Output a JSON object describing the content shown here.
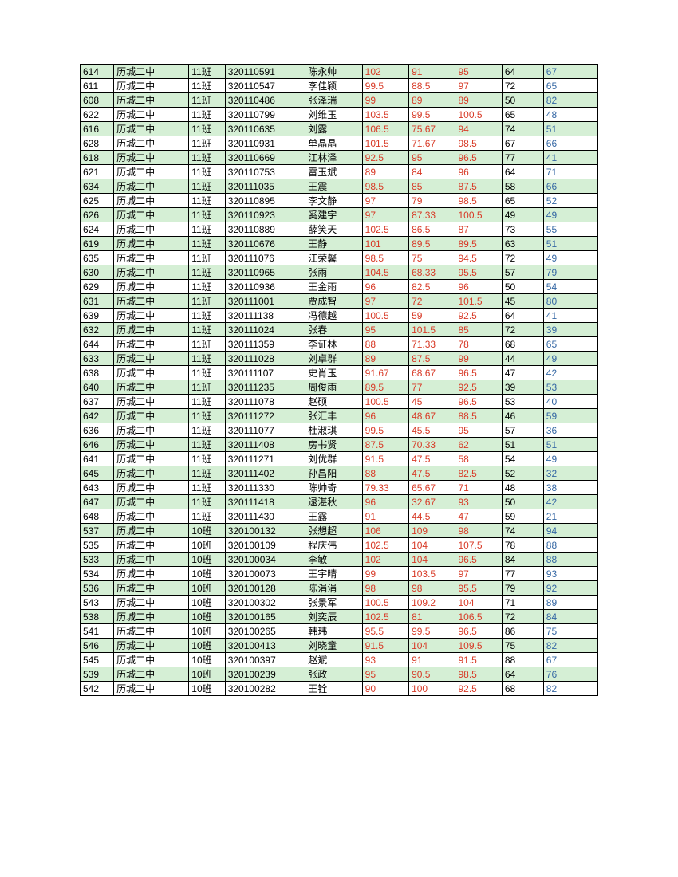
{
  "table": {
    "columns": [
      "id",
      "school",
      "class",
      "student_id",
      "name",
      "score1",
      "score2",
      "score3",
      "score4",
      "score5"
    ],
    "column_classes": [
      "col-id",
      "col-school",
      "col-class",
      "col-studentid",
      "col-name",
      "col-s1",
      "col-s2",
      "col-s3",
      "col-s4",
      "col-s5"
    ],
    "column_colors": [
      "black",
      "black",
      "black",
      "black",
      "black",
      "red",
      "red",
      "red",
      "black",
      "blue"
    ],
    "row_alt_colors": [
      "#d5efd5",
      "#ffffff"
    ],
    "border_color": "#000000",
    "font_size": 12,
    "data_colors": {
      "col0_4": "#000000",
      "col5_7": "#d83a27",
      "col8": "#000000",
      "col9": "#3668a4"
    },
    "rows": [
      [
        "614",
        "历城二中",
        "11班",
        "320110591",
        "陈永帅",
        "102",
        "91",
        "95",
        "64",
        "67"
      ],
      [
        "611",
        "历城二中",
        "11班",
        "320110547",
        "李佳颖",
        "99.5",
        "88.5",
        "97",
        "72",
        "65"
      ],
      [
        "608",
        "历城二中",
        "11班",
        "320110486",
        "张泽瑞",
        "99",
        "89",
        "89",
        "50",
        "82"
      ],
      [
        "622",
        "历城二中",
        "11班",
        "320110799",
        "刘维玉",
        "103.5",
        "99.5",
        "100.5",
        "65",
        "48"
      ],
      [
        "616",
        "历城二中",
        "11班",
        "320110635",
        "刘露",
        "106.5",
        "75.67",
        "94",
        "74",
        "51"
      ],
      [
        "628",
        "历城二中",
        "11班",
        "320110931",
        "单晶晶",
        "101.5",
        "71.67",
        "98.5",
        "67",
        "66"
      ],
      [
        "618",
        "历城二中",
        "11班",
        "320110669",
        "江林泽",
        "92.5",
        "95",
        "96.5",
        "77",
        "41"
      ],
      [
        "621",
        "历城二中",
        "11班",
        "320110753",
        "雷玉斌",
        "89",
        "84",
        "96",
        "64",
        "71"
      ],
      [
        "634",
        "历城二中",
        "11班",
        "320111035",
        "王震",
        "98.5",
        "85",
        "87.5",
        "58",
        "66"
      ],
      [
        "625",
        "历城二中",
        "11班",
        "320110895",
        "李文静",
        "97",
        "79",
        "98.5",
        "65",
        "52"
      ],
      [
        "626",
        "历城二中",
        "11班",
        "320110923",
        "奚建宇",
        "97",
        "87.33",
        "100.5",
        "49",
        "49"
      ],
      [
        "624",
        "历城二中",
        "11班",
        "320110889",
        "薛笑天",
        "102.5",
        "86.5",
        "87",
        "73",
        "55"
      ],
      [
        "619",
        "历城二中",
        "11班",
        "320110676",
        "王静",
        "101",
        "89.5",
        "89.5",
        "63",
        "51"
      ],
      [
        "635",
        "历城二中",
        "11班",
        "320111076",
        "江荣馨",
        "98.5",
        "75",
        "94.5",
        "72",
        "49"
      ],
      [
        "630",
        "历城二中",
        "11班",
        "320110965",
        "张雨",
        "104.5",
        "68.33",
        "95.5",
        "57",
        "79"
      ],
      [
        "629",
        "历城二中",
        "11班",
        "320110936",
        "王金雨",
        "96",
        "82.5",
        "96",
        "50",
        "54"
      ],
      [
        "631",
        "历城二中",
        "11班",
        "320111001",
        "贾成智",
        "97",
        "72",
        "101.5",
        "45",
        "80"
      ],
      [
        "639",
        "历城二中",
        "11班",
        "320111138",
        "冯德越",
        "100.5",
        "59",
        "92.5",
        "64",
        "41"
      ],
      [
        "632",
        "历城二中",
        "11班",
        "320111024",
        "张春",
        "95",
        "101.5",
        "85",
        "72",
        "39"
      ],
      [
        "644",
        "历城二中",
        "11班",
        "320111359",
        "李证林",
        "88",
        "71.33",
        "78",
        "68",
        "65"
      ],
      [
        "633",
        "历城二中",
        "11班",
        "320111028",
        "刘卓群",
        "89",
        "87.5",
        "99",
        "44",
        "49"
      ],
      [
        "638",
        "历城二中",
        "11班",
        "320111107",
        "史肖玉",
        "91.67",
        "68.67",
        "96.5",
        "47",
        "42"
      ],
      [
        "640",
        "历城二中",
        "11班",
        "320111235",
        "周俊雨",
        "89.5",
        "77",
        "92.5",
        "39",
        "53"
      ],
      [
        "637",
        "历城二中",
        "11班",
        "320111078",
        "赵硕",
        "100.5",
        "45",
        "96.5",
        "53",
        "40"
      ],
      [
        "642",
        "历城二中",
        "11班",
        "320111272",
        "张汇丰",
        "96",
        "48.67",
        "88.5",
        "46",
        "59"
      ],
      [
        "636",
        "历城二中",
        "11班",
        "320111077",
        "杜淑琪",
        "99.5",
        "45.5",
        "95",
        "57",
        "36"
      ],
      [
        "646",
        "历城二中",
        "11班",
        "320111408",
        "房书贤",
        "87.5",
        "70.33",
        "62",
        "51",
        "51"
      ],
      [
        "641",
        "历城二中",
        "11班",
        "320111271",
        "刘优群",
        "91.5",
        "47.5",
        "58",
        "54",
        "49"
      ],
      [
        "645",
        "历城二中",
        "11班",
        "320111402",
        "孙昌阳",
        "88",
        "47.5",
        "82.5",
        "52",
        "32"
      ],
      [
        "643",
        "历城二中",
        "11班",
        "320111330",
        "陈帅奇",
        "79.33",
        "65.67",
        "71",
        "48",
        "38"
      ],
      [
        "647",
        "历城二中",
        "11班",
        "320111418",
        "逯湛秋",
        "96",
        "32.67",
        "93",
        "50",
        "42"
      ],
      [
        "648",
        "历城二中",
        "11班",
        "320111430",
        "王露",
        "91",
        "44.5",
        "47",
        "59",
        "21"
      ],
      [
        "537",
        "历城二中",
        "10班",
        "320100132",
        "张想超",
        "106",
        "109",
        "98",
        "74",
        "94"
      ],
      [
        "535",
        "历城二中",
        "10班",
        "320100109",
        "程庆伟",
        "102.5",
        "104",
        "107.5",
        "78",
        "88"
      ],
      [
        "533",
        "历城二中",
        "10班",
        "320100034",
        "李敏",
        "102",
        "104",
        "96.5",
        "84",
        "88"
      ],
      [
        "534",
        "历城二中",
        "10班",
        "320100073",
        "王宇晴",
        "99",
        "103.5",
        "97",
        "77",
        "93"
      ],
      [
        "536",
        "历城二中",
        "10班",
        "320100128",
        "陈涓涓",
        "98",
        "98",
        "95.5",
        "79",
        "92"
      ],
      [
        "543",
        "历城二中",
        "10班",
        "320100302",
        "张景军",
        "100.5",
        "109.2",
        "104",
        "71",
        "89"
      ],
      [
        "538",
        "历城二中",
        "10班",
        "320100165",
        "刘奕辰",
        "102.5",
        "81",
        "106.5",
        "72",
        "84"
      ],
      [
        "541",
        "历城二中",
        "10班",
        "320100265",
        "韩玮",
        "95.5",
        "99.5",
        "96.5",
        "86",
        "75"
      ],
      [
        "546",
        "历城二中",
        "10班",
        "320100413",
        "刘晓童",
        "91.5",
        "104",
        "109.5",
        "75",
        "82"
      ],
      [
        "545",
        "历城二中",
        "10班",
        "320100397",
        "赵斌",
        "93",
        "91",
        "91.5",
        "88",
        "67"
      ],
      [
        "539",
        "历城二中",
        "10班",
        "320100239",
        "张政",
        "95",
        "90.5",
        "98.5",
        "64",
        "76"
      ],
      [
        "542",
        "历城二中",
        "10班",
        "320100282",
        "王铨",
        "90",
        "100",
        "92.5",
        "68",
        "82"
      ]
    ]
  }
}
